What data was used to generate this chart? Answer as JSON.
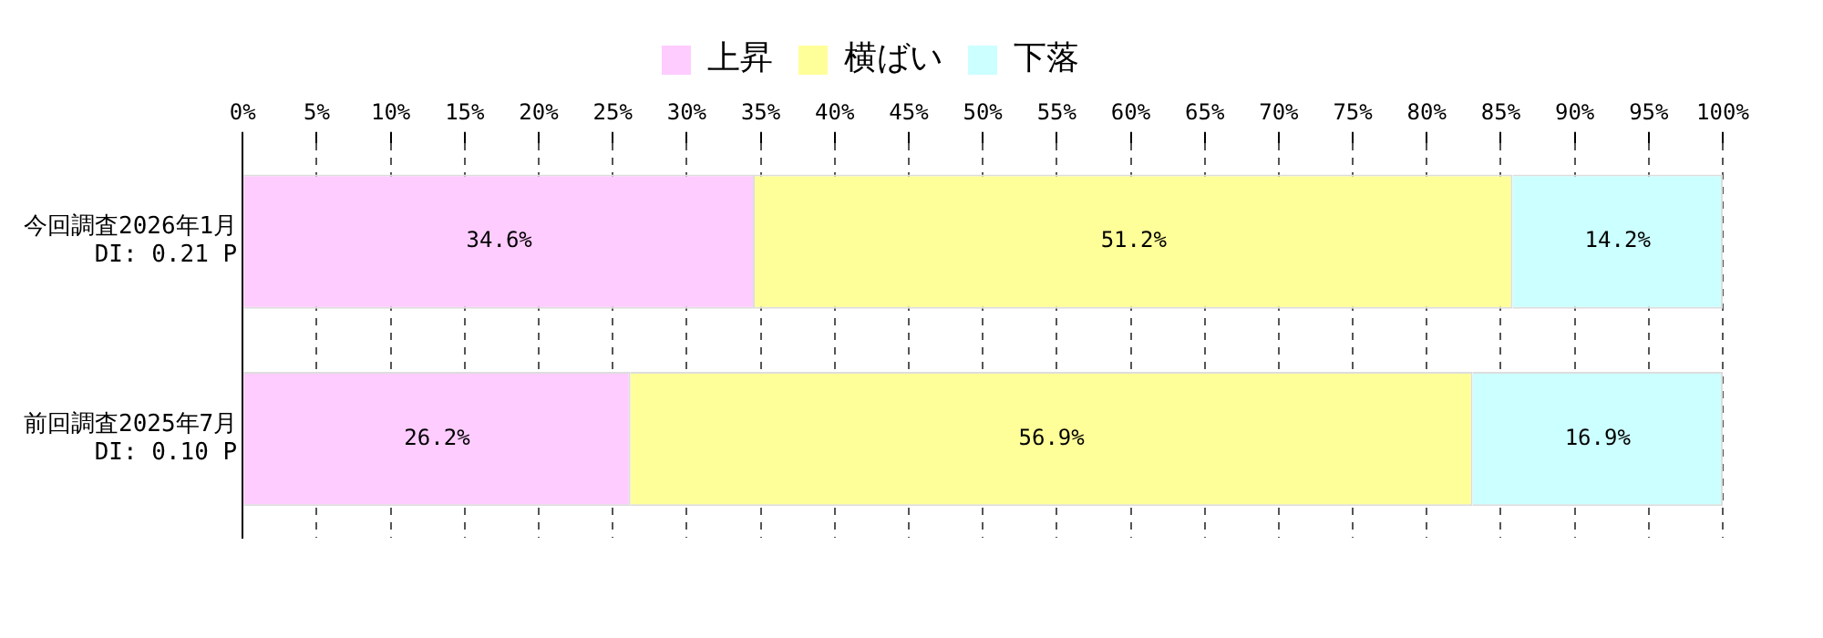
{
  "chart_data": {
    "type": "bar",
    "orientation": "horizontal",
    "stacked": true,
    "categories": [
      "今回調査2026年1月\nDI: 0.21 P",
      "前回調査2025年7月\nDI: 0.10 P"
    ],
    "series": [
      {
        "name": "上昇",
        "color": "#ffccff",
        "values": [
          34.6,
          26.2
        ],
        "value_labels": [
          "34.6%",
          "26.2%"
        ]
      },
      {
        "name": "横ばい",
        "color": "#ffff99",
        "values": [
          51.2,
          56.9
        ],
        "value_labels": [
          "51.2%",
          "56.9%"
        ]
      },
      {
        "name": "下落",
        "color": "#ccffff",
        "values": [
          14.2,
          16.9
        ],
        "value_labels": [
          "14.2%",
          "16.9%"
        ]
      }
    ],
    "xlim": [
      0,
      100
    ],
    "xticks": [
      {
        "value": 0,
        "label": "0%"
      },
      {
        "value": 5,
        "label": "5%"
      },
      {
        "value": 10,
        "label": "10%"
      },
      {
        "value": 15,
        "label": "15%"
      },
      {
        "value": 20,
        "label": "20%"
      },
      {
        "value": 25,
        "label": "25%"
      },
      {
        "value": 30,
        "label": "30%"
      },
      {
        "value": 35,
        "label": "35%"
      },
      {
        "value": 40,
        "label": "40%"
      },
      {
        "value": 45,
        "label": "45%"
      },
      {
        "value": 50,
        "label": "50%"
      },
      {
        "value": 55,
        "label": "55%"
      },
      {
        "value": 60,
        "label": "60%"
      },
      {
        "value": 65,
        "label": "65%"
      },
      {
        "value": 70,
        "label": "70%"
      },
      {
        "value": 75,
        "label": "75%"
      },
      {
        "value": 80,
        "label": "80%"
      },
      {
        "value": 85,
        "label": "85%"
      },
      {
        "value": 90,
        "label": "90%"
      },
      {
        "value": 95,
        "label": "95%"
      },
      {
        "value": 100,
        "label": "100%"
      }
    ],
    "grid": "x",
    "legend": "top"
  }
}
